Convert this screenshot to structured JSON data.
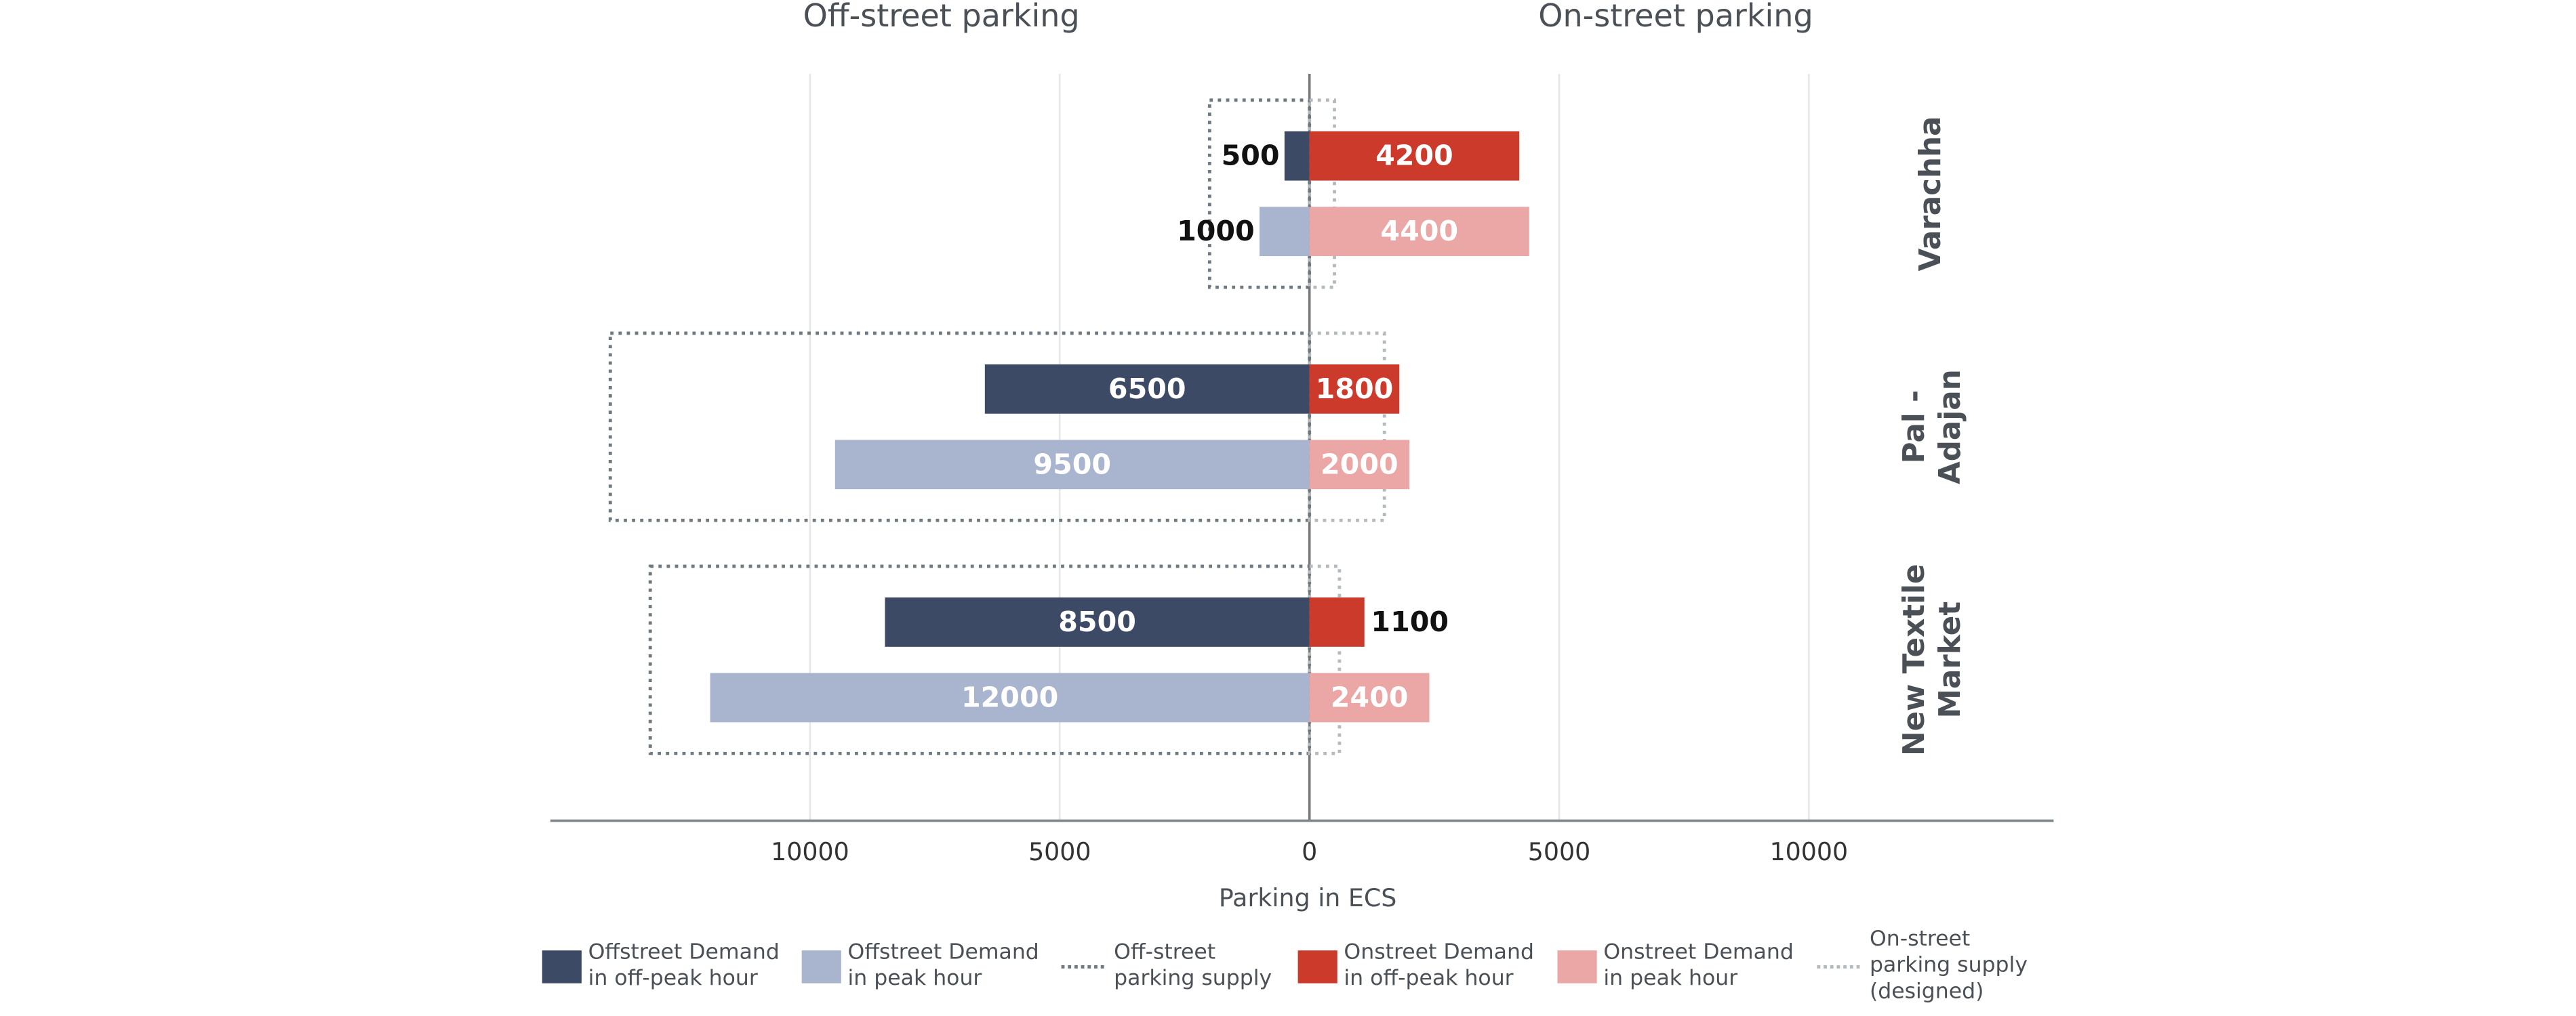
{
  "chart_data": {
    "type": "butterfly-bar",
    "left_title": "Off-street parking",
    "right_title": "On-street parking",
    "x_label": "Parking in ECS",
    "categories": [
      "Varachha",
      "Pal - Adajan",
      "New Textile Market"
    ],
    "xlim": [
      -15200,
      14900
    ],
    "xticks": [
      {
        "value": -10000,
        "label": "10000"
      },
      {
        "value": -5000,
        "label": "5000"
      },
      0,
      5000,
      10000
    ],
    "grid": true,
    "series": [
      {
        "name": "Offstreet Demand in off-peak hour",
        "color": "#3d4a66",
        "side": "left",
        "slot": "off-peak",
        "mark": "bar",
        "values": [
          500,
          6500,
          8500
        ]
      },
      {
        "name": "Offstreet Demand in peak hour",
        "color": "#a9b5cf",
        "side": "left",
        "slot": "peak",
        "mark": "bar",
        "values": [
          1000,
          9500,
          12000
        ]
      },
      {
        "name": "Off-street parking supply",
        "color": "#6e7a80",
        "side": "left",
        "mark": "dotted-box",
        "values": [
          2000,
          14000,
          13200
        ]
      },
      {
        "name": "Onstreet Demand in off-peak hour",
        "color": "#cc3a2c",
        "side": "right",
        "slot": "off-peak",
        "mark": "bar",
        "values": [
          4200,
          1800,
          1100
        ]
      },
      {
        "name": "Onstreet Demand in peak hour",
        "color": "#eba6a6",
        "side": "right",
        "slot": "peak",
        "mark": "bar",
        "values": [
          4400,
          2000,
          2400
        ]
      },
      {
        "name": "On-street parking supply (designed)",
        "color": "#b5babe",
        "side": "right",
        "mark": "dotted-box",
        "values": [
          500,
          1500,
          600
        ]
      }
    ]
  }
}
